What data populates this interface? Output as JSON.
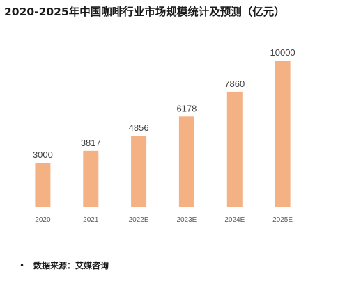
{
  "chart_data": {
    "type": "bar",
    "title": "2020-2025年中国咖啡行业市场规模统计及预测（亿元）",
    "categories": [
      "2020",
      "2021",
      "2022E",
      "2023E",
      "2024E",
      "2025E"
    ],
    "values": [
      3000,
      3817,
      4856,
      6178,
      7860,
      10000
    ],
    "data_labels": [
      "3000",
      "3817",
      "4856",
      "6178",
      "7860",
      "10000"
    ],
    "xlabel": "",
    "ylabel": "",
    "ylim": [
      0,
      10000
    ],
    "grid": false,
    "legend": "none",
    "colors": {
      "bar": "#f4b183",
      "axis": "#d9d9d9",
      "label": "#404040",
      "tick": "#595959"
    }
  },
  "footer": {
    "bullet": "•",
    "source": "数据来源：艾媒咨询"
  }
}
